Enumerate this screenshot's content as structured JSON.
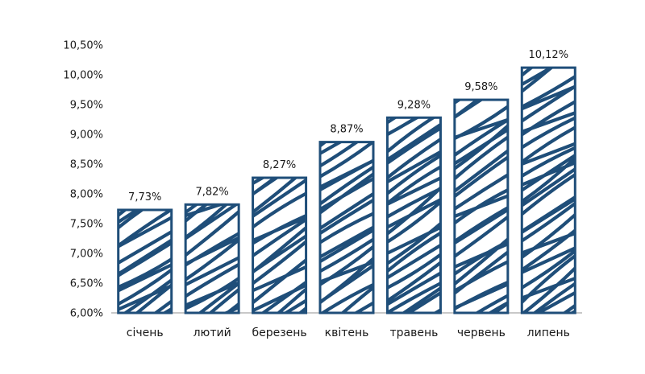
{
  "chart_data": {
    "type": "bar",
    "title": "",
    "xlabel": "",
    "ylabel": "",
    "categories": [
      "січень",
      "лютий",
      "березень",
      "квітень",
      "травень",
      "червень",
      "липень"
    ],
    "values": [
      7.73,
      7.82,
      8.27,
      8.87,
      9.28,
      9.58,
      10.12
    ],
    "value_labels": [
      "7,73%",
      "7,82%",
      "8,27%",
      "8,87%",
      "9,28%",
      "9,58%",
      "10,12%"
    ],
    "ylim": [
      6.0,
      10.5
    ],
    "yticks": [
      {
        "value": 6.0,
        "label": "6,00%"
      },
      {
        "value": 6.5,
        "label": "6,50%"
      },
      {
        "value": 7.0,
        "label": "7,00%"
      },
      {
        "value": 7.5,
        "label": "7,50%"
      },
      {
        "value": 8.0,
        "label": "8,00%"
      },
      {
        "value": 8.5,
        "label": "8,50%"
      },
      {
        "value": 9.0,
        "label": "9,00%"
      },
      {
        "value": 9.5,
        "label": "9,50%"
      },
      {
        "value": 10.0,
        "label": "10,00%"
      },
      {
        "value": 10.5,
        "label": "10,50%"
      }
    ],
    "grid": false,
    "legend": "none",
    "colors": {
      "bar": "#1f4e79",
      "axis": "#c8c8c8",
      "text": "#1a1a1a"
    }
  }
}
